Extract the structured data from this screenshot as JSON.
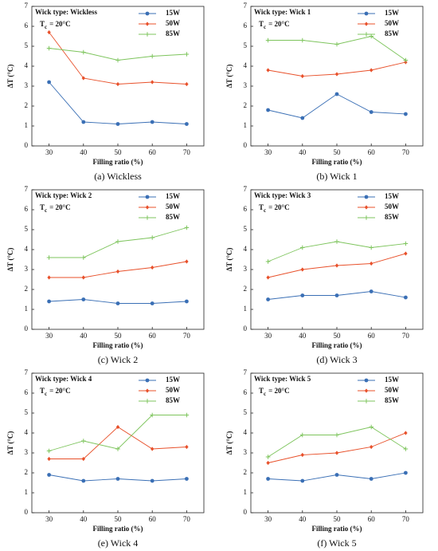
{
  "chart_data": [
    {
      "type": "line",
      "annotation": "Wick type: Wickless",
      "condition_symbol": "T",
      "condition_subscript": "c",
      "condition_value": "= 20°C",
      "x_label": "Filling ratio (%)",
      "y_label": "ΔT (°C)",
      "caption": "(a) Wickless",
      "x": [
        30,
        40,
        50,
        60,
        70
      ],
      "xlim": [
        25,
        75
      ],
      "xticks": [
        30,
        40,
        50,
        60,
        70
      ],
      "ylim": [
        0,
        7
      ],
      "yticks": [
        0,
        1,
        2,
        3,
        4,
        5,
        6,
        7
      ],
      "legend": "upper right",
      "series": [
        {
          "name": "15W",
          "color": "#3a6fb5",
          "marker": "circle",
          "values": [
            3.2,
            1.2,
            1.1,
            1.2,
            1.1
          ]
        },
        {
          "name": "50W",
          "color": "#e8502a",
          "marker": "diamond",
          "values": [
            5.7,
            3.4,
            3.1,
            3.2,
            3.1
          ]
        },
        {
          "name": "85W",
          "color": "#7dc45c",
          "marker": "plus",
          "values": [
            4.9,
            4.7,
            4.3,
            4.5,
            4.6
          ]
        }
      ]
    },
    {
      "type": "line",
      "annotation": "Wick type: Wick 1",
      "condition_symbol": "T",
      "condition_subscript": "c",
      "condition_value": "= 20°C",
      "x_label": "Filling ratio (%)",
      "y_label": "ΔT (°C)",
      "caption": "(b) Wick 1",
      "x": [
        30,
        40,
        50,
        60,
        70
      ],
      "xlim": [
        25,
        75
      ],
      "xticks": [
        30,
        40,
        50,
        60,
        70
      ],
      "ylim": [
        0,
        7
      ],
      "yticks": [
        0,
        1,
        2,
        3,
        4,
        5,
        6,
        7
      ],
      "legend": "upper right",
      "series": [
        {
          "name": "15W",
          "color": "#3a6fb5",
          "marker": "circle",
          "values": [
            1.8,
            1.4,
            2.6,
            1.7,
            1.6
          ]
        },
        {
          "name": "50W",
          "color": "#e8502a",
          "marker": "diamond",
          "values": [
            3.8,
            3.5,
            3.6,
            3.8,
            4.2
          ]
        },
        {
          "name": "85W",
          "color": "#7dc45c",
          "marker": "plus",
          "values": [
            5.3,
            5.3,
            5.1,
            5.5,
            4.3
          ]
        }
      ]
    },
    {
      "type": "line",
      "annotation": "Wick type: Wick 2",
      "condition_symbol": "T",
      "condition_subscript": "c",
      "condition_value": "= 20°C",
      "x_label": "Filling ratio (%)",
      "y_label": "ΔT (°C)",
      "caption": "(c) Wick 2",
      "x": [
        30,
        40,
        50,
        60,
        70
      ],
      "xlim": [
        25,
        75
      ],
      "xticks": [
        30,
        40,
        50,
        60,
        70
      ],
      "ylim": [
        0,
        7
      ],
      "yticks": [
        0,
        1,
        2,
        3,
        4,
        5,
        6,
        7
      ],
      "legend": "upper right",
      "series": [
        {
          "name": "15W",
          "color": "#3a6fb5",
          "marker": "circle",
          "values": [
            1.4,
            1.5,
            1.3,
            1.3,
            1.4
          ]
        },
        {
          "name": "50W",
          "color": "#e8502a",
          "marker": "diamond",
          "values": [
            2.6,
            2.6,
            2.9,
            3.1,
            3.4
          ]
        },
        {
          "name": "85W",
          "color": "#7dc45c",
          "marker": "plus",
          "values": [
            3.6,
            3.6,
            4.4,
            4.6,
            5.1
          ]
        }
      ]
    },
    {
      "type": "line",
      "annotation": "Wick type: Wick 3",
      "condition_symbol": "T",
      "condition_subscript": "c",
      "condition_value": "= 20°C",
      "x_label": "Filling ratio (%)",
      "y_label": "ΔT (°C)",
      "caption": "(d) Wick 3",
      "x": [
        30,
        40,
        50,
        60,
        70
      ],
      "xlim": [
        25,
        75
      ],
      "xticks": [
        30,
        40,
        50,
        60,
        70
      ],
      "ylim": [
        0,
        7
      ],
      "yticks": [
        0,
        1,
        2,
        3,
        4,
        5,
        6,
        7
      ],
      "legend": "upper right",
      "series": [
        {
          "name": "15W",
          "color": "#3a6fb5",
          "marker": "circle",
          "values": [
            1.5,
            1.7,
            1.7,
            1.9,
            1.6
          ]
        },
        {
          "name": "50W",
          "color": "#e8502a",
          "marker": "diamond",
          "values": [
            2.6,
            3.0,
            3.2,
            3.3,
            3.8
          ]
        },
        {
          "name": "85W",
          "color": "#7dc45c",
          "marker": "plus",
          "values": [
            3.4,
            4.1,
            4.4,
            4.1,
            4.3
          ]
        }
      ]
    },
    {
      "type": "line",
      "annotation": "Wick type: Wick 4",
      "condition_symbol": "T",
      "condition_subscript": "c",
      "condition_value": "= 20°C",
      "x_label": "Filling ratio (%)",
      "y_label": "ΔT (°C)",
      "caption": "(e) Wick 4",
      "x": [
        30,
        40,
        50,
        60,
        70
      ],
      "xlim": [
        25,
        75
      ],
      "xticks": [
        30,
        40,
        50,
        60,
        70
      ],
      "ylim": [
        0,
        7
      ],
      "yticks": [
        0,
        1,
        2,
        3,
        4,
        5,
        6,
        7
      ],
      "legend": "upper right",
      "series": [
        {
          "name": "15W",
          "color": "#3a6fb5",
          "marker": "circle",
          "values": [
            1.9,
            1.6,
            1.7,
            1.6,
            1.7
          ]
        },
        {
          "name": "50W",
          "color": "#e8502a",
          "marker": "diamond",
          "values": [
            2.7,
            2.7,
            4.3,
            3.2,
            3.3
          ]
        },
        {
          "name": "85W",
          "color": "#7dc45c",
          "marker": "plus",
          "values": [
            3.1,
            3.6,
            3.2,
            4.9,
            4.9
          ]
        }
      ]
    },
    {
      "type": "line",
      "annotation": "Wick type: Wick 5",
      "condition_symbol": "T",
      "condition_subscript": "c",
      "condition_value": "= 20°C",
      "x_label": "Filling ratio (%)",
      "y_label": "ΔT (°C)",
      "caption": "(f) Wick 5",
      "x": [
        30,
        40,
        50,
        60,
        70
      ],
      "xlim": [
        25,
        75
      ],
      "xticks": [
        30,
        40,
        50,
        60,
        70
      ],
      "ylim": [
        0,
        7
      ],
      "yticks": [
        0,
        1,
        2,
        3,
        4,
        5,
        6,
        7
      ],
      "legend": "upper right",
      "series": [
        {
          "name": "15W",
          "color": "#3a6fb5",
          "marker": "circle",
          "values": [
            1.7,
            1.6,
            1.9,
            1.7,
            2.0
          ]
        },
        {
          "name": "50W",
          "color": "#e8502a",
          "marker": "diamond",
          "values": [
            2.5,
            2.9,
            3.0,
            3.3,
            4.0
          ]
        },
        {
          "name": "85W",
          "color": "#7dc45c",
          "marker": "plus",
          "values": [
            2.8,
            3.9,
            3.9,
            4.3,
            3.2
          ]
        }
      ]
    }
  ]
}
